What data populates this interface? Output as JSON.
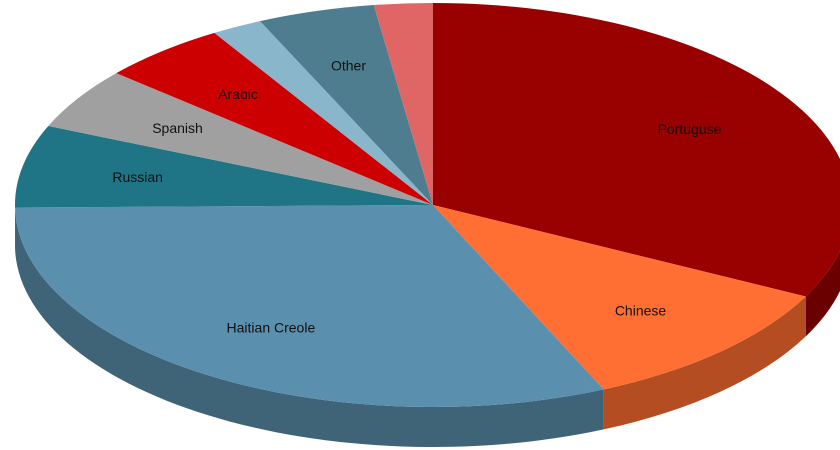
{
  "chart_data": {
    "type": "pie",
    "style": "3d",
    "legend": "none",
    "slices": [
      {
        "label": "Portuguse",
        "value": 33.0,
        "color": "#990000",
        "side_color": "#6b0000"
      },
      {
        "label": "Chinese",
        "value": 11.0,
        "color": "#ff6f33",
        "side_color": "#b54d22"
      },
      {
        "label": "Haitian Creole",
        "value": 32.0,
        "color": "#5a90ae",
        "side_color": "#3f6478"
      },
      {
        "label": "Russian",
        "value": 6.7,
        "color": "#1f7585",
        "side_color": "#155260"
      },
      {
        "label": "Spanish",
        "value": 5.0,
        "color": "#a0a0a0",
        "side_color": "#707070"
      },
      {
        "label": "Arabic",
        "value": 5.0,
        "color": "#cc0000",
        "side_color": "#8e0000"
      },
      {
        "label": "",
        "value": 2.0,
        "color": "#8ab6cc",
        "side_color": "#5f7f8e"
      },
      {
        "label": "Other",
        "value": 4.6,
        "color": "#4f7d90",
        "side_color": "#375764"
      },
      {
        "label": "",
        "value": 2.3,
        "color": "#e06666",
        "side_color": "#9c4747"
      }
    ]
  }
}
